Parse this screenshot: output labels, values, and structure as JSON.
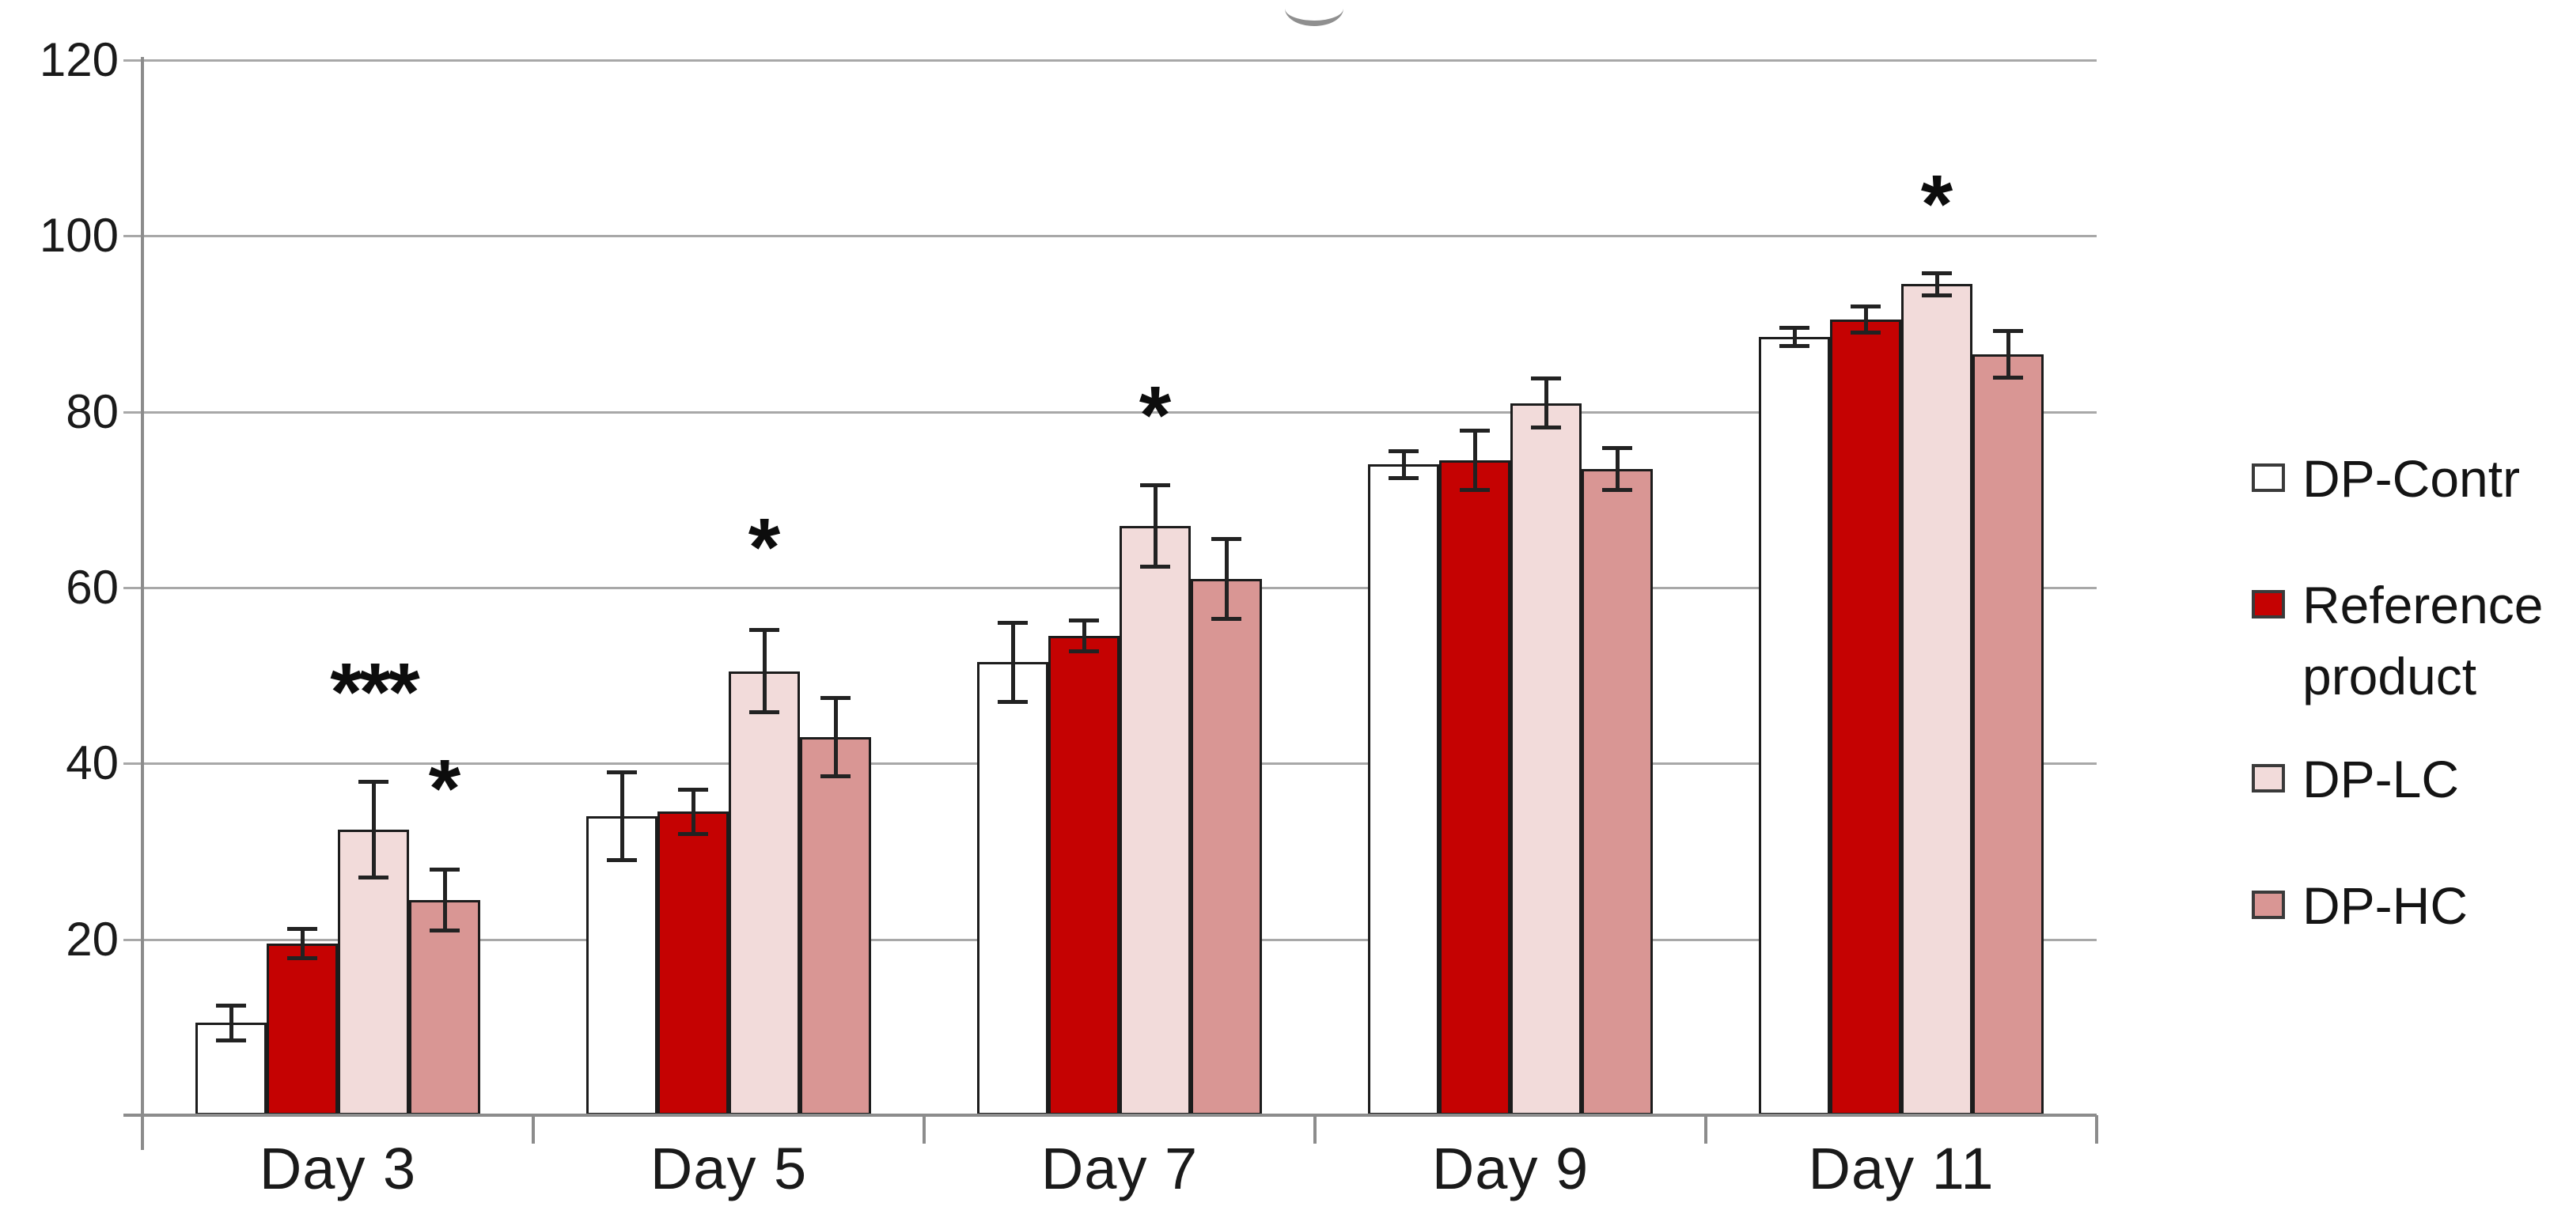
{
  "chart_data": {
    "type": "bar",
    "title": "",
    "categories": [
      "Day 3",
      "Day 5",
      "Day 7",
      "Day 9",
      "Day 11"
    ],
    "series": [
      {
        "name": "DP-Contr",
        "color": "#FFFFFF",
        "values": [
          10.5,
          34,
          51.5,
          74,
          88.5
        ],
        "errors": [
          2,
          5,
          4.5,
          1.6,
          1.1
        ]
      },
      {
        "name": "Reference product",
        "color": "#C50202",
        "values": [
          19.5,
          34.5,
          54.5,
          74.5,
          90.5
        ],
        "errors": [
          1.7,
          2.6,
          1.8,
          3.4,
          1.5
        ]
      },
      {
        "name": "DP-LC",
        "color": "#F2DBDA",
        "values": [
          32.5,
          50.5,
          67,
          81,
          94.5
        ],
        "errors": [
          5.5,
          4.7,
          4.7,
          2.8,
          1.3
        ]
      },
      {
        "name": "DP-HC",
        "color": "#D99694",
        "values": [
          24.5,
          43,
          61,
          73.5,
          86.5
        ],
        "errors": [
          3.5,
          4.5,
          4.6,
          2.4,
          2.7
        ]
      }
    ],
    "y_axis": {
      "min": 0,
      "max": 120,
      "tick_step": 20,
      "tick_labels": [
        "20",
        "40",
        "60",
        "80",
        "100",
        "120"
      ]
    },
    "grid": true,
    "legend_position": "right",
    "annotations": [
      {
        "category": "Day 3",
        "series": "DP-LC",
        "text": "***",
        "y": 47.5
      },
      {
        "category": "Day 3",
        "series": "DP-HC",
        "text": "*",
        "y": 36.5
      },
      {
        "category": "Day 5",
        "series": "DP-LC",
        "text": "*",
        "y": 64
      },
      {
        "category": "Day 7",
        "series": "DP-LC",
        "text": "*",
        "y": 79
      },
      {
        "category": "Day 11",
        "series": "DP-LC",
        "text": "*",
        "y": 103
      }
    ],
    "colors": {
      "bar_outline": "#1C1C1C",
      "error_bar": "#222222",
      "gridline": "#A8A8A8",
      "axis": "#8C8C8C",
      "text": "#1A1A1A"
    }
  }
}
